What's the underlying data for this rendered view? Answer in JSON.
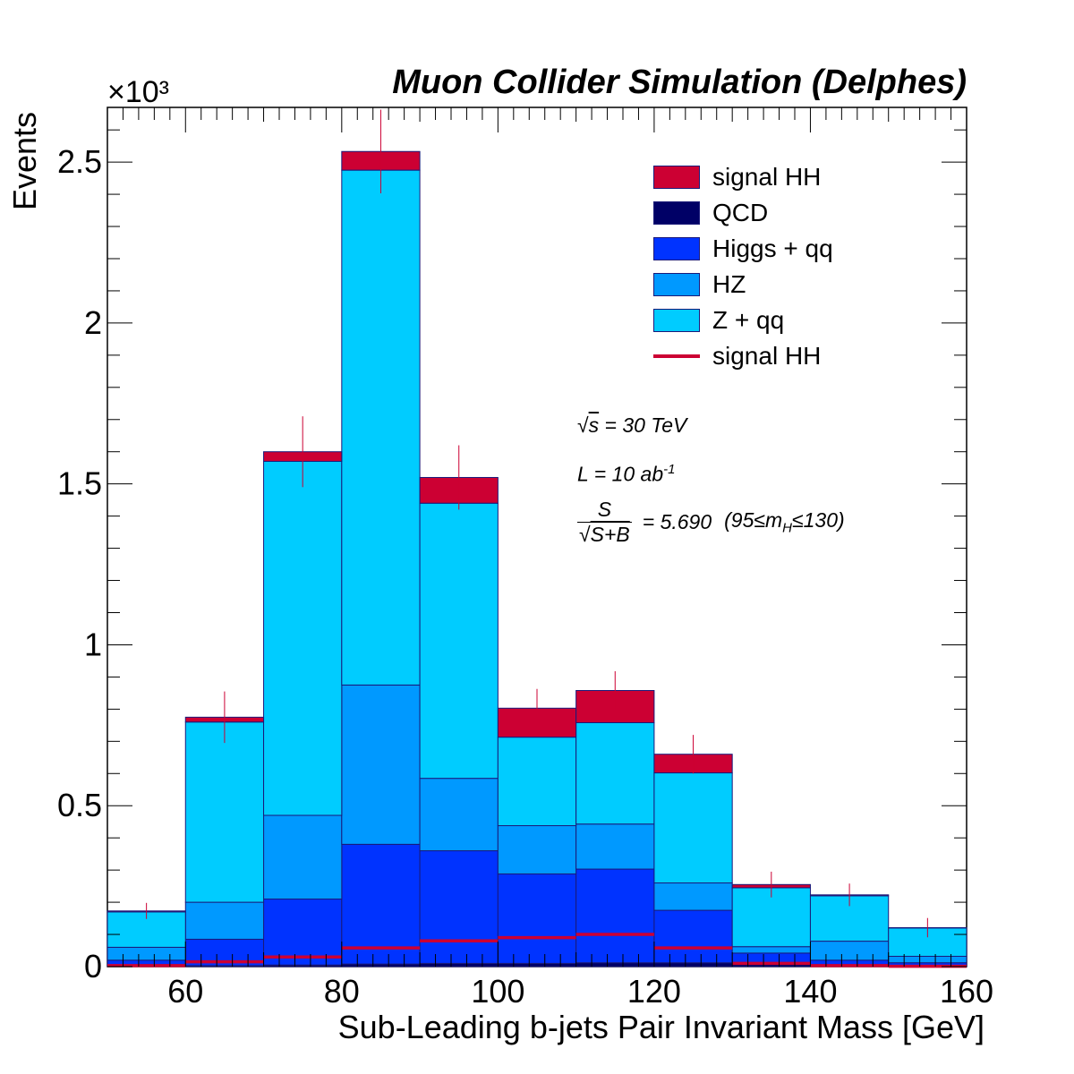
{
  "chart_data": {
    "type": "bar",
    "stacked": true,
    "title": "Muon Collider Simulation (Delphes)",
    "xlabel": "Sub-Leading b-jets Pair Invariant Mass [GeV]",
    "ylabel": "Events",
    "y_multiplier": "×10³",
    "bin_edges": [
      50,
      60,
      70,
      80,
      90,
      100,
      110,
      120,
      130,
      140,
      150,
      160
    ],
    "xlim": [
      50,
      160
    ],
    "ylim": [
      0,
      2.67
    ],
    "xticks": [
      60,
      80,
      100,
      120,
      140,
      160
    ],
    "yticks": [
      0,
      0.5,
      1,
      1.5,
      2,
      2.5
    ],
    "ytick_labels": [
      "0",
      "0.5",
      "1",
      "1.5",
      "2",
      "2.5"
    ],
    "series": [
      {
        "name": "QCD",
        "color": "#000066",
        "values": [
          0.003,
          0.003,
          0.005,
          0.008,
          0.01,
          0.01,
          0.012,
          0.012,
          0.008,
          0.003,
          0.002
        ]
      },
      {
        "name": "Higgs + qq",
        "color": "#0033ff",
        "values": [
          0.017,
          0.082,
          0.205,
          0.372,
          0.35,
          0.278,
          0.291,
          0.163,
          0.034,
          0.017,
          0.01
        ]
      },
      {
        "name": "HZ",
        "color": "#0099ff",
        "values": [
          0.04,
          0.115,
          0.26,
          0.495,
          0.225,
          0.15,
          0.14,
          0.085,
          0.02,
          0.059,
          0.02
        ]
      },
      {
        "name": "Z + qq",
        "color": "#00ccff",
        "values": [
          0.11,
          0.56,
          1.1,
          1.6,
          0.855,
          0.275,
          0.315,
          0.342,
          0.183,
          0.141,
          0.088
        ]
      },
      {
        "name": "signal HH",
        "color": "#cc0033",
        "values": [
          0.003,
          0.015,
          0.03,
          0.058,
          0.08,
          0.09,
          0.1,
          0.058,
          0.01,
          0.003,
          0.001
        ]
      }
    ],
    "totals": [
      0.173,
      0.775,
      1.6,
      2.533,
      1.52,
      0.803,
      0.858,
      0.66,
      0.255,
      0.223,
      0.121
    ],
    "errors": [
      0.025,
      0.08,
      0.11,
      0.13,
      0.1,
      0.06,
      0.06,
      0.06,
      0.04,
      0.035,
      0.03
    ],
    "signal_overlay": {
      "name": "signal HH",
      "color": "#cc0033",
      "values": [
        0.003,
        0.015,
        0.03,
        0.058,
        0.08,
        0.09,
        0.1,
        0.058,
        0.01,
        0.003,
        0.001
      ]
    },
    "legend": [
      {
        "label": "signal HH",
        "kind": "box",
        "color": "#cc0033"
      },
      {
        "label": "QCD",
        "kind": "box",
        "color": "#000066"
      },
      {
        "label": "Higgs + qq",
        "kind": "box",
        "color": "#0033ff"
      },
      {
        "label": "HZ",
        "kind": "box",
        "color": "#0099ff"
      },
      {
        "label": "Z + qq",
        "kind": "box",
        "color": "#00ccff"
      },
      {
        "label": "signal HH",
        "kind": "line",
        "color": "#cc0033"
      }
    ],
    "legend_position": "top-right",
    "annotations": {
      "sqrt_symbol": "√",
      "energy_var": "s",
      "energy_value": "= 30 TeV",
      "lumi_prefix": "L = 10 ab",
      "lumi_exp": "-1",
      "sig_numerator": "S",
      "sig_denominator": "S+B",
      "sig_value": "= 5.690",
      "window_open": "(95≤m",
      "window_sub": "H",
      "window_close": "≤130)"
    },
    "grid": false
  }
}
